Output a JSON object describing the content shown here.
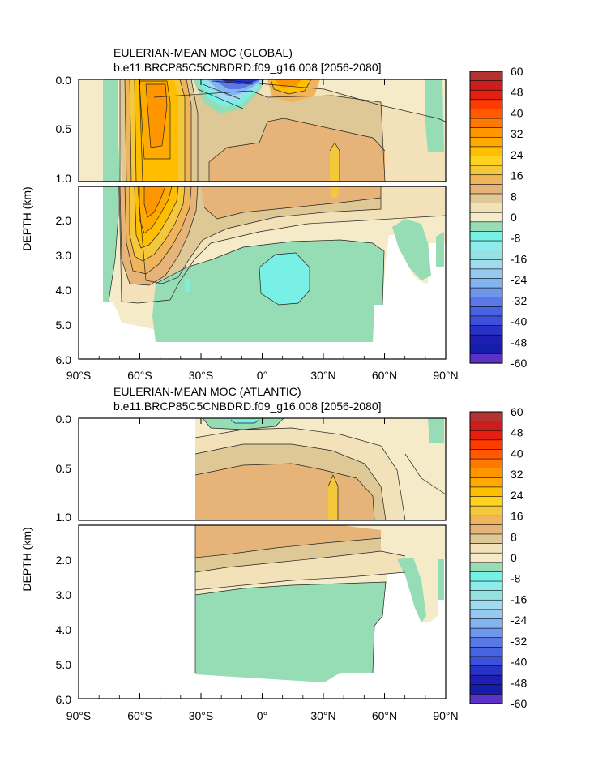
{
  "chart_data": [
    {
      "type": "heatmap",
      "title": "EULERIAN-MEAN MOC (GLOBAL)",
      "subtitle": "b.e11.BRCP85C5CNBDRD.f09_g16.008 [2056-2080]",
      "ylabel": "DEPTH (km)",
      "xlabel": "",
      "x_ticks": [
        "90°S",
        "60°S",
        "30°S",
        "0°",
        "30°N",
        "60°N",
        "90°N"
      ],
      "y_ticks_upper": [
        "0.0",
        "0.5",
        "1.0"
      ],
      "y_ticks_lower": [
        "2.0",
        "3.0",
        "4.0",
        "5.0",
        "6.0"
      ],
      "xlim": [
        -90,
        90
      ],
      "ylim_upper": [
        0,
        1.0
      ],
      "ylim_lower": [
        1.0,
        6.0
      ],
      "colorbar_labels": [
        "60",
        "48",
        "40",
        "32",
        "24",
        "16",
        "8",
        "0",
        "-8",
        "-16",
        "-24",
        "-32",
        "-40",
        "-48",
        "-60"
      ],
      "colorbar_colors": [
        "#b43232",
        "#cd1e1e",
        "#e61e0f",
        "#ff3c00",
        "#ff5a00",
        "#ff7800",
        "#ff9600",
        "#ffaa00",
        "#ffbe00",
        "#ffd21e",
        "#f5c83c",
        "#f0b45a",
        "#e6b478",
        "#ddc896",
        "#f2e1b9",
        "#f5ebc8",
        "#96dcb4",
        "#78f0e6",
        "#8cebeb",
        "#96e1e1",
        "#a0dcf0",
        "#96c8f0",
        "#82b4f0",
        "#6e96eb",
        "#5a78e6",
        "#4664e1",
        "#3c50dc",
        "#2832c8",
        "#1e1eb4",
        "#141eaa",
        "#5a32c8"
      ],
      "features": [
        {
          "name": "southern-ocean-cell",
          "lat_min": -72,
          "lat_max": -38,
          "depth_min": 0,
          "depth_max": 4.3,
          "max_value": 36
        },
        {
          "name": "deacon-counter-cell",
          "lat_min": -30,
          "lat_max": 3,
          "depth_min": 0,
          "depth_max": 0.18,
          "min_value": -50
        },
        {
          "name": "tropical-cell",
          "lat_min": 3,
          "lat_max": 25,
          "depth_min": 0,
          "depth_max": 0.2,
          "max_value": 40
        },
        {
          "name": "upper-cell",
          "lat_min": -35,
          "lat_max": 90,
          "depth_min": 0,
          "depth_max": 2.6,
          "max_value": 16
        },
        {
          "name": "abyssal-cell",
          "lat_min": -52,
          "lat_max": 57,
          "depth_min": 2.6,
          "depth_max": 5.5,
          "min_value": -8
        }
      ]
    },
    {
      "type": "heatmap",
      "title": "EULERIAN-MEAN MOC (ATLANTIC)",
      "subtitle": "b.e11.BRCP85C5CNBDRD.f09_g16.008 [2056-2080]",
      "ylabel": "DEPTH (km)",
      "xlabel": "",
      "x_ticks": [
        "90°S",
        "60°S",
        "30°S",
        "0°",
        "30°N",
        "60°N",
        "90°N"
      ],
      "y_ticks_upper": [
        "0.0",
        "0.5",
        "1.0"
      ],
      "y_ticks_lower": [
        "2.0",
        "3.0",
        "4.0",
        "5.0",
        "6.0"
      ],
      "xlim": [
        -90,
        90
      ],
      "ylim_upper": [
        0,
        1.0
      ],
      "ylim_lower": [
        1.0,
        6.0
      ],
      "colorbar_labels": [
        "60",
        "48",
        "40",
        "32",
        "24",
        "16",
        "8",
        "0",
        "-8",
        "-16",
        "-24",
        "-32",
        "-40",
        "-48",
        "-60"
      ],
      "colorbar_colors": [
        "#b43232",
        "#cd1e1e",
        "#e61e0f",
        "#ff3c00",
        "#ff5a00",
        "#ff7800",
        "#ff9600",
        "#ffaa00",
        "#ffbe00",
        "#ffd21e",
        "#f5c83c",
        "#f0b45a",
        "#e6b478",
        "#ddc896",
        "#f2e1b9",
        "#f5ebc8",
        "#96dcb4",
        "#78f0e6",
        "#8cebeb",
        "#96e1e1",
        "#a0dcf0",
        "#96c8f0",
        "#82b4f0",
        "#6e96eb",
        "#5a78e6",
        "#4664e1",
        "#3c50dc",
        "#2832c8",
        "#1e1eb4",
        "#141eaa",
        "#5a32c8"
      ],
      "basin_south_limit": -34,
      "features": [
        {
          "name": "amoc-upper-cell",
          "lat_min": -34,
          "lat_max": 65,
          "depth_min": 0.1,
          "depth_max": 2.6,
          "max_value": 18
        },
        {
          "name": "surface-negative-cell",
          "lat_min": -30,
          "lat_max": 5,
          "depth_min": 0,
          "depth_max": 0.1,
          "min_value": -4
        },
        {
          "name": "abyssal-cell",
          "lat_min": -34,
          "lat_max": 57,
          "depth_min": 2.7,
          "depth_max": 5.5,
          "min_value": -4
        }
      ]
    }
  ]
}
